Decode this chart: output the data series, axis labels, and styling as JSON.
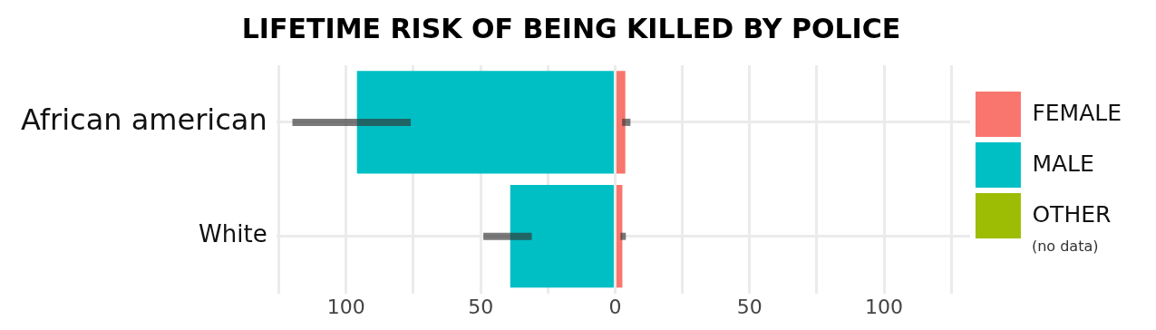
{
  "chart_data": {
    "type": "bar",
    "title": "LIFETIME RISK OF BEING KILLED BY POLICE",
    "orientation": "horizontal",
    "stacked": true,
    "categories": [
      "African american",
      "White"
    ],
    "series": [
      {
        "name": "FEMALE",
        "color": "#f8766d",
        "values": [
          3.8,
          2.7
        ],
        "errors": [
          [
            2.6,
            5.7
          ],
          [
            2,
            4
          ]
        ]
      },
      {
        "name": "MALE",
        "color": "#00bfc4",
        "values": [
          -96,
          -39
        ],
        "errors": [
          [
            -120,
            -76
          ],
          [
            -49,
            -31
          ]
        ]
      },
      {
        "name": "OTHER",
        "color": "#9cbd03",
        "values": [
          null,
          null
        ]
      }
    ],
    "xlim": [
      -126,
      132
    ],
    "xticks": [
      {
        "value": -125,
        "label": null
      },
      {
        "value": -100,
        "label": "100"
      },
      {
        "value": -75,
        "label": null
      },
      {
        "value": -50,
        "label": "50"
      },
      {
        "value": -25,
        "label": null
      },
      0,
      {
        "value": 25,
        "label": null
      },
      50,
      {
        "value": 75,
        "label": null
      },
      100,
      {
        "value": 125,
        "label": null
      }
    ],
    "grid": true,
    "legend": "right",
    "annotations": [
      "(no data)"
    ]
  }
}
